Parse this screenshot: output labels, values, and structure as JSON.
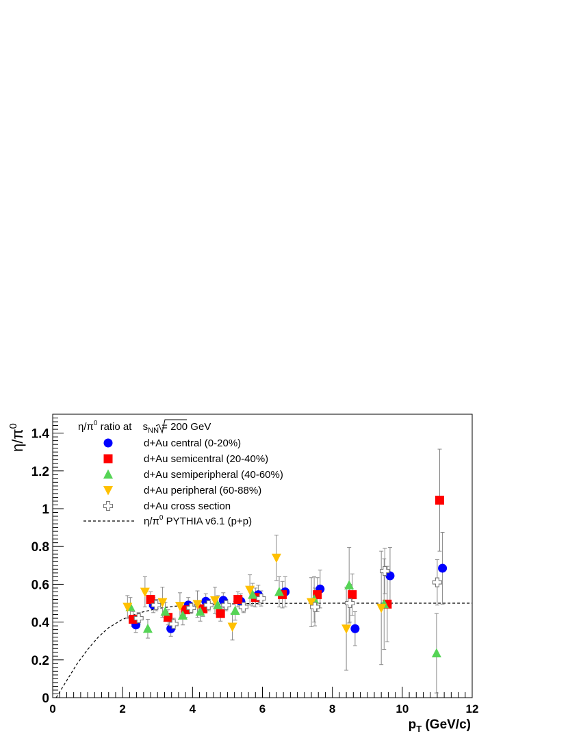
{
  "chart_data": {
    "type": "scatter",
    "title": "",
    "legend_header": {
      "text": "η/π",
      "sup": "0",
      "text2": " ratio at ",
      "sqrt_s": "s",
      "sqrt_sub": "NN",
      "text3": " = 200 GeV"
    },
    "xlabel": "p",
    "xlabel_sub": "T",
    "xlabel_unit": " (GeV/c)",
    "ylabel": "η/π",
    "ylabel_sup": "0",
    "xlim": [
      0,
      12
    ],
    "ylim": [
      0,
      1.5
    ],
    "xticks": [
      "0",
      "2",
      "4",
      "6",
      "8",
      "10",
      "12"
    ],
    "yticks": [
      "0",
      "0.2",
      "0.4",
      "0.6",
      "0.8",
      "1",
      "1.2",
      "1.4"
    ],
    "legend_placement": "top-left",
    "series": [
      {
        "name": "d+Au central (0-20%)",
        "marker": "circle",
        "color": "#0000ff",
        "points": [
          {
            "x": 2.38,
            "y": 0.385,
            "err": 0.04
          },
          {
            "x": 2.88,
            "y": 0.49,
            "err": 0.04
          },
          {
            "x": 3.38,
            "y": 0.365,
            "err": 0.04
          },
          {
            "x": 3.88,
            "y": 0.49,
            "err": 0.04
          },
          {
            "x": 4.38,
            "y": 0.51,
            "err": 0.04
          },
          {
            "x": 4.88,
            "y": 0.515,
            "err": 0.04
          },
          {
            "x": 5.38,
            "y": 0.51,
            "err": 0.04
          },
          {
            "x": 5.88,
            "y": 0.545,
            "err": 0.05
          },
          {
            "x": 6.65,
            "y": 0.56,
            "err": 0.08
          },
          {
            "x": 7.65,
            "y": 0.575,
            "err": 0.1
          },
          {
            "x": 8.65,
            "y": 0.365,
            "err": 0.09
          },
          {
            "x": 9.65,
            "y": 0.645,
            "err": 0.15
          },
          {
            "x": 11.15,
            "y": 0.685,
            "err": 0.19
          }
        ]
      },
      {
        "name": "d+Au semicentral (20-40%)",
        "marker": "square",
        "color": "#ff0000",
        "points": [
          {
            "x": 2.3,
            "y": 0.415,
            "err": 0.04
          },
          {
            "x": 2.8,
            "y": 0.52,
            "err": 0.04
          },
          {
            "x": 3.3,
            "y": 0.425,
            "err": 0.04
          },
          {
            "x": 3.8,
            "y": 0.465,
            "err": 0.04
          },
          {
            "x": 4.3,
            "y": 0.47,
            "err": 0.04
          },
          {
            "x": 4.8,
            "y": 0.445,
            "err": 0.04
          },
          {
            "x": 5.3,
            "y": 0.52,
            "err": 0.04
          },
          {
            "x": 5.8,
            "y": 0.53,
            "err": 0.05
          },
          {
            "x": 6.57,
            "y": 0.545,
            "err": 0.07
          },
          {
            "x": 7.57,
            "y": 0.545,
            "err": 0.09
          },
          {
            "x": 8.57,
            "y": 0.545,
            "err": 0.11
          },
          {
            "x": 9.57,
            "y": 0.495,
            "err": 0.2
          },
          {
            "x": 11.07,
            "y": 1.045,
            "err": 0.27
          }
        ]
      },
      {
        "name": "d+Au semiperipheral (40-60%)",
        "marker": "triangle-up",
        "color": "#55d455",
        "points": [
          {
            "x": 2.22,
            "y": 0.48,
            "err": 0.05
          },
          {
            "x": 2.72,
            "y": 0.365,
            "err": 0.05
          },
          {
            "x": 3.22,
            "y": 0.455,
            "err": 0.05
          },
          {
            "x": 3.72,
            "y": 0.435,
            "err": 0.05
          },
          {
            "x": 4.22,
            "y": 0.455,
            "err": 0.05
          },
          {
            "x": 4.72,
            "y": 0.49,
            "err": 0.05
          },
          {
            "x": 5.22,
            "y": 0.46,
            "err": 0.05
          },
          {
            "x": 5.72,
            "y": 0.545,
            "err": 0.06
          },
          {
            "x": 6.48,
            "y": 0.56,
            "err": 0.08
          },
          {
            "x": 7.48,
            "y": 0.52,
            "err": 0.12
          },
          {
            "x": 8.48,
            "y": 0.595,
            "err": 0.2
          },
          {
            "x": 9.48,
            "y": 0.495,
            "err": 0.24
          },
          {
            "x": 10.98,
            "y": 0.235,
            "err": 0.21
          }
        ]
      },
      {
        "name": "d+Au peripheral (60-88%)",
        "marker": "triangle-down",
        "color": "#ffc000",
        "points": [
          {
            "x": 2.14,
            "y": 0.48,
            "err": 0.06
          },
          {
            "x": 2.64,
            "y": 0.56,
            "err": 0.08
          },
          {
            "x": 3.14,
            "y": 0.505,
            "err": 0.08
          },
          {
            "x": 3.64,
            "y": 0.485,
            "err": 0.07
          },
          {
            "x": 4.14,
            "y": 0.495,
            "err": 0.07
          },
          {
            "x": 4.64,
            "y": 0.515,
            "err": 0.07
          },
          {
            "x": 5.14,
            "y": 0.375,
            "err": 0.07
          },
          {
            "x": 5.64,
            "y": 0.57,
            "err": 0.08
          },
          {
            "x": 6.4,
            "y": 0.74,
            "err": 0.12
          },
          {
            "x": 7.4,
            "y": 0.505,
            "err": 0.13
          },
          {
            "x": 8.4,
            "y": 0.365,
            "err": 0.22
          },
          {
            "x": 9.4,
            "y": 0.475,
            "err": 0.3
          }
        ]
      },
      {
        "name": "d+Au cross section",
        "marker": "open-cross",
        "color": "#777777",
        "points": [
          {
            "x": 2.46,
            "y": 0.42,
            "err": 0.03
          },
          {
            "x": 2.96,
            "y": 0.49,
            "err": 0.03
          },
          {
            "x": 3.46,
            "y": 0.39,
            "err": 0.03
          },
          {
            "x": 3.96,
            "y": 0.475,
            "err": 0.03
          },
          {
            "x": 4.46,
            "y": 0.49,
            "err": 0.03
          },
          {
            "x": 4.96,
            "y": 0.49,
            "err": 0.03
          },
          {
            "x": 5.46,
            "y": 0.48,
            "err": 0.03
          },
          {
            "x": 5.96,
            "y": 0.525,
            "err": 0.04
          },
          {
            "x": 7.5,
            "y": 0.48,
            "err": 0.1
          },
          {
            "x": 8.5,
            "y": 0.5,
            "err": 0.1
          },
          {
            "x": 9.5,
            "y": 0.67,
            "err": 0.12
          },
          {
            "x": 11.0,
            "y": 0.61,
            "err": 0.12
          }
        ]
      }
    ],
    "reference_curve": {
      "name": "η/π",
      "name_sup": "0",
      "name_rest": " PYTHIA v6.1 (p+p)",
      "style": "dashed",
      "color": "#000000",
      "plateau": 0.5,
      "x": [
        0.1,
        0.3,
        0.5,
        0.7,
        1.0,
        1.3,
        1.6,
        2.0,
        2.5,
        3.0,
        3.5,
        4.0,
        5.0,
        6.0,
        8.0,
        10.0,
        12.0
      ],
      "y": [
        0.0,
        0.06,
        0.12,
        0.18,
        0.255,
        0.32,
        0.37,
        0.415,
        0.45,
        0.472,
        0.484,
        0.49,
        0.496,
        0.499,
        0.5,
        0.5,
        0.5
      ]
    }
  }
}
